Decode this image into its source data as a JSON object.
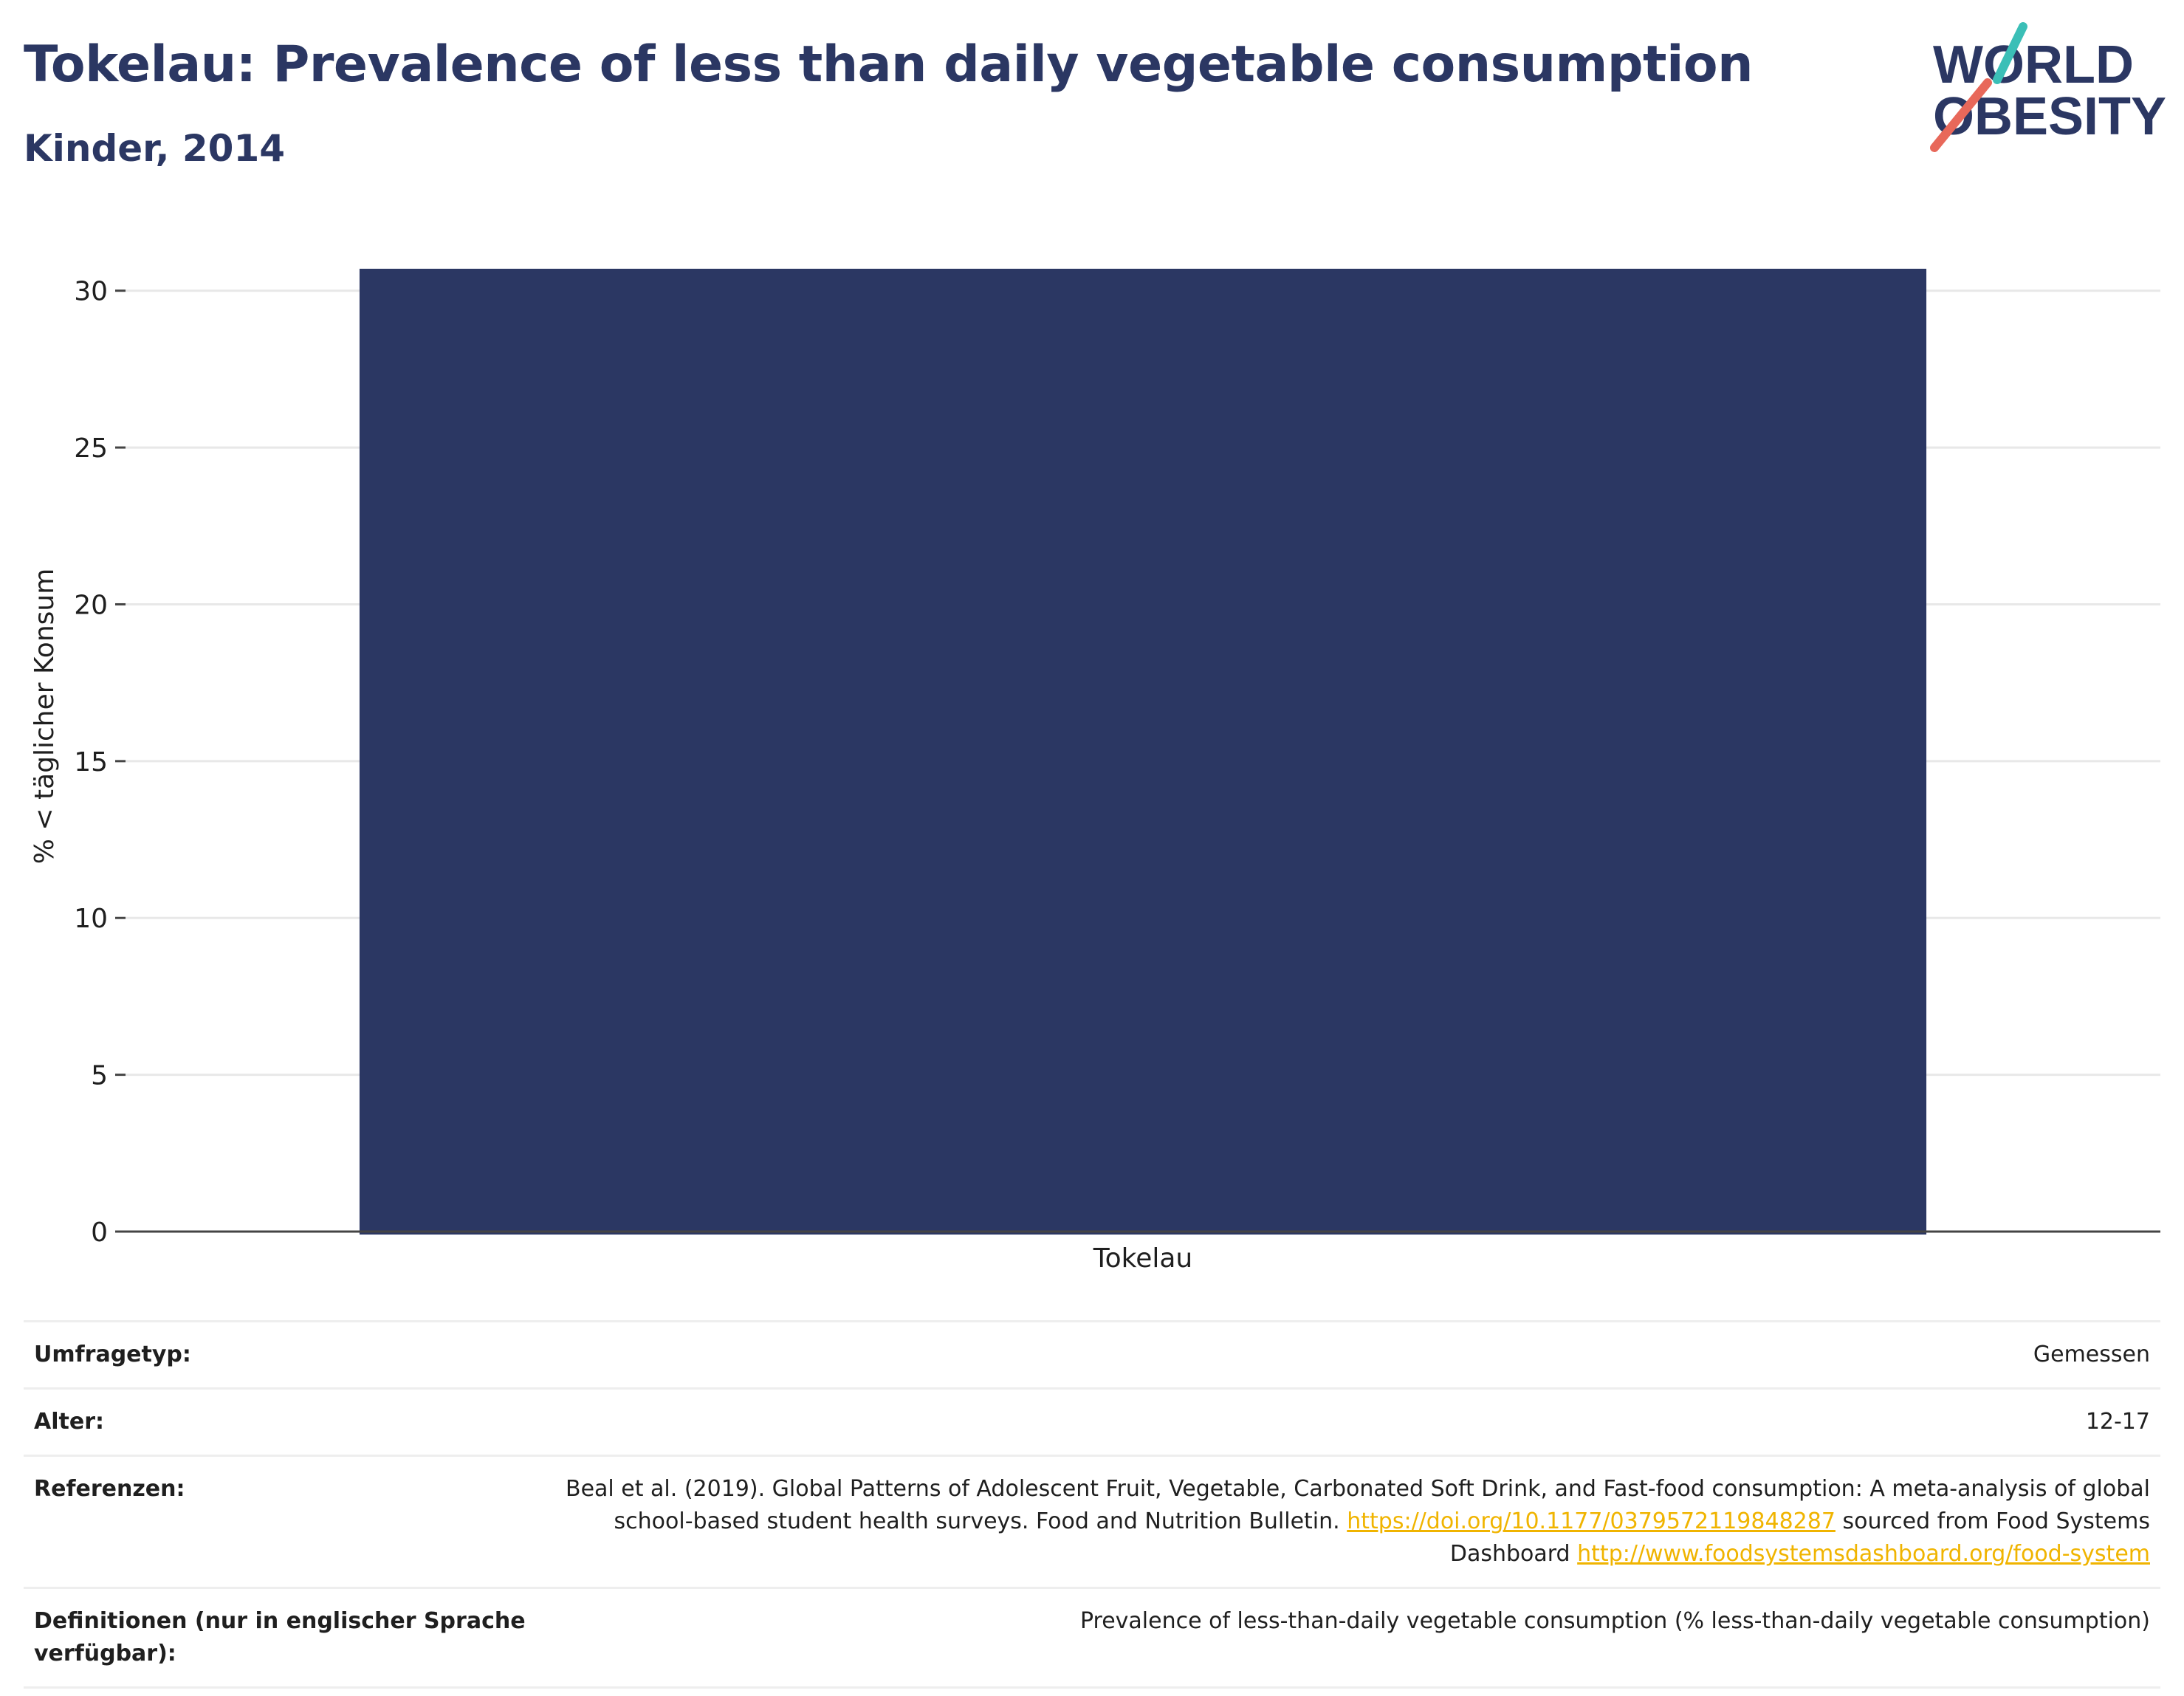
{
  "header": {
    "title": "Tokelau: Prevalence of less than daily vegetable consumption",
    "subtitle": "Kinder, 2014"
  },
  "logo": {
    "line1": "WORLD",
    "line2": "OBESITY",
    "accent_teal": "#3bbfb7",
    "accent_coral": "#e8685a"
  },
  "chart_data": {
    "type": "bar",
    "categories": [
      "Tokelau"
    ],
    "values": [
      30.7
    ],
    "ylabel": "% < täglicher Konsum",
    "xlabel": "",
    "ylim": [
      0,
      31.5
    ],
    "yticks": [
      0,
      5,
      10,
      15,
      20,
      25,
      30
    ],
    "grid": true,
    "bar_color": "#2b3763"
  },
  "meta": {
    "survey_label": "Umfragetyp:",
    "survey_value": "Gemessen",
    "age_label": "Alter:",
    "age_value": "12-17",
    "ref_label": "Referenzen:",
    "ref_text_1": "Beal et al. (2019). Global Patterns of Adolescent Fruit, Vegetable, Carbonated Soft Drink, and Fast-food consumption: A meta-analysis of global school-based student health surveys. Food and Nutrition Bulletin.",
    "ref_link_1": "https://doi.org/10.1177/0379572119848287",
    "ref_text_2": "sourced from Food Systems Dashboard",
    "ref_link_2": "http://www.foodsystemsdashboard.org/food-system",
    "def_label": "Definitionen (nur in englischer Sprache verfügbar):",
    "def_value": "Prevalence of less-than-daily vegetable consumption (% less-than-daily vegetable consumption)"
  }
}
